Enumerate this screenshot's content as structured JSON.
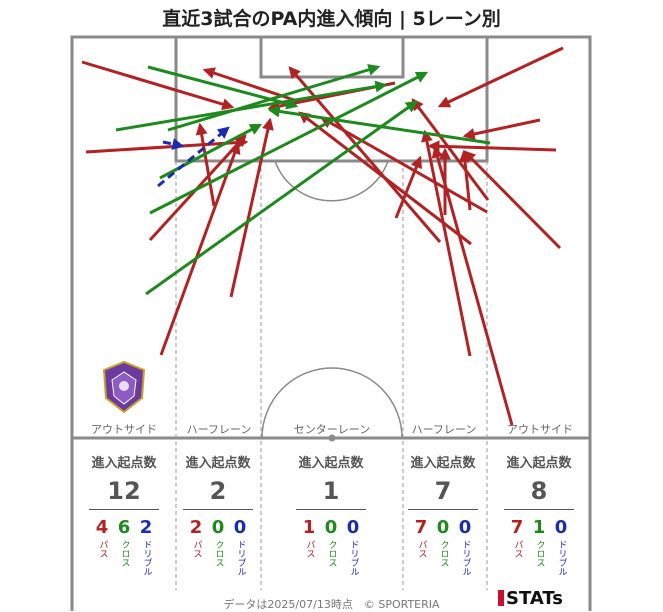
{
  "title": "直近3試合のPA内進入傾向 | 5レーン別",
  "lanes": [
    {
      "name": "アウトサイド",
      "head": "進入起点数",
      "total": "12",
      "pass": "4",
      "cross": "6",
      "dribble": "2"
    },
    {
      "name": "ハーフレーン",
      "head": "進入起点数",
      "total": "2",
      "pass": "2",
      "cross": "0",
      "dribble": "0"
    },
    {
      "name": "センターレーン",
      "head": "進入起点数",
      "total": "1",
      "pass": "1",
      "cross": "0",
      "dribble": "0"
    },
    {
      "name": "ハーフレーン",
      "head": "進入起点数",
      "total": "7",
      "pass": "7",
      "cross": "0",
      "dribble": "0"
    },
    {
      "name": "アウトサイド",
      "head": "進入起点数",
      "total": "8",
      "pass": "7",
      "cross": "1",
      "dribble": "0"
    }
  ],
  "labels": {
    "pass": "パス",
    "cross": "クロス",
    "dribble": "ドリブル"
  },
  "colors": {
    "pass": "#b22222",
    "cross": "#1e8a1e",
    "dribble": "#1a2bb5"
  },
  "footer": "データは2025/07/13時点　© SPORTERIA",
  "brand": "STATs",
  "logo_icon": "club-crest-icon"
}
